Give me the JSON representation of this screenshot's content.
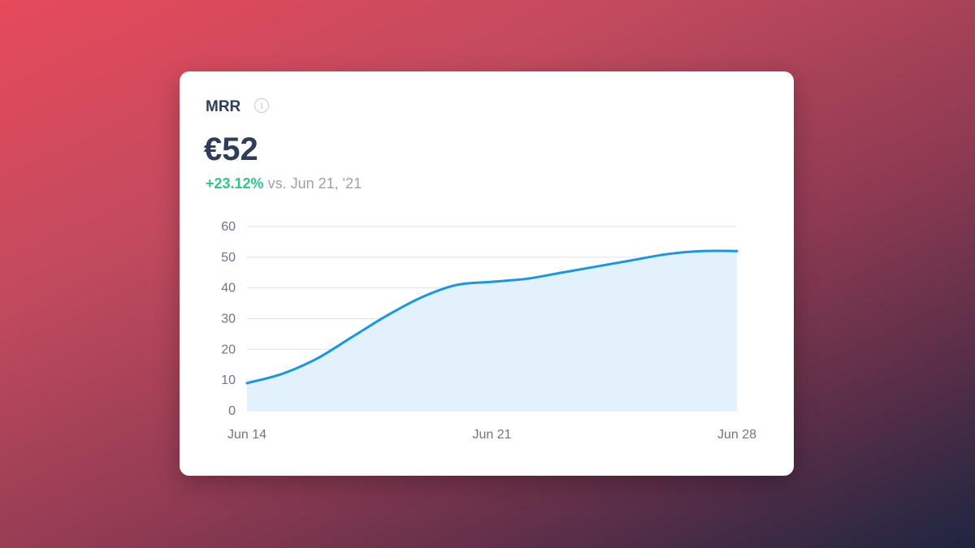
{
  "card": {
    "title": "MRR",
    "info_icon": "info-icon",
    "value": "€52",
    "change_pct": "+23.12%",
    "change_compare": "vs. Jun 21, '21"
  },
  "colors": {
    "line": "#1a96e6",
    "fill": "#e3f1fc",
    "positive": "#2ec98a",
    "grid": "#dde2ea"
  },
  "chart_data": {
    "type": "area",
    "title": "MRR",
    "xlabel": "",
    "ylabel": "",
    "x": [
      "Jun 14",
      "Jun 15",
      "Jun 16",
      "Jun 17",
      "Jun 18",
      "Jun 19",
      "Jun 20",
      "Jun 21",
      "Jun 22",
      "Jun 23",
      "Jun 24",
      "Jun 25",
      "Jun 26",
      "Jun 27",
      "Jun 28"
    ],
    "values": [
      9,
      12,
      17,
      24,
      31,
      37,
      41,
      42,
      43,
      45,
      47,
      49,
      51,
      52,
      52
    ],
    "x_tick_labels": [
      "Jun 14",
      "Jun 21",
      "Jun 28"
    ],
    "y_ticks": [
      "0",
      "10",
      "20",
      "30",
      "40",
      "50",
      "60"
    ],
    "ylim": [
      0,
      60
    ],
    "grid": true,
    "legend": "none"
  }
}
